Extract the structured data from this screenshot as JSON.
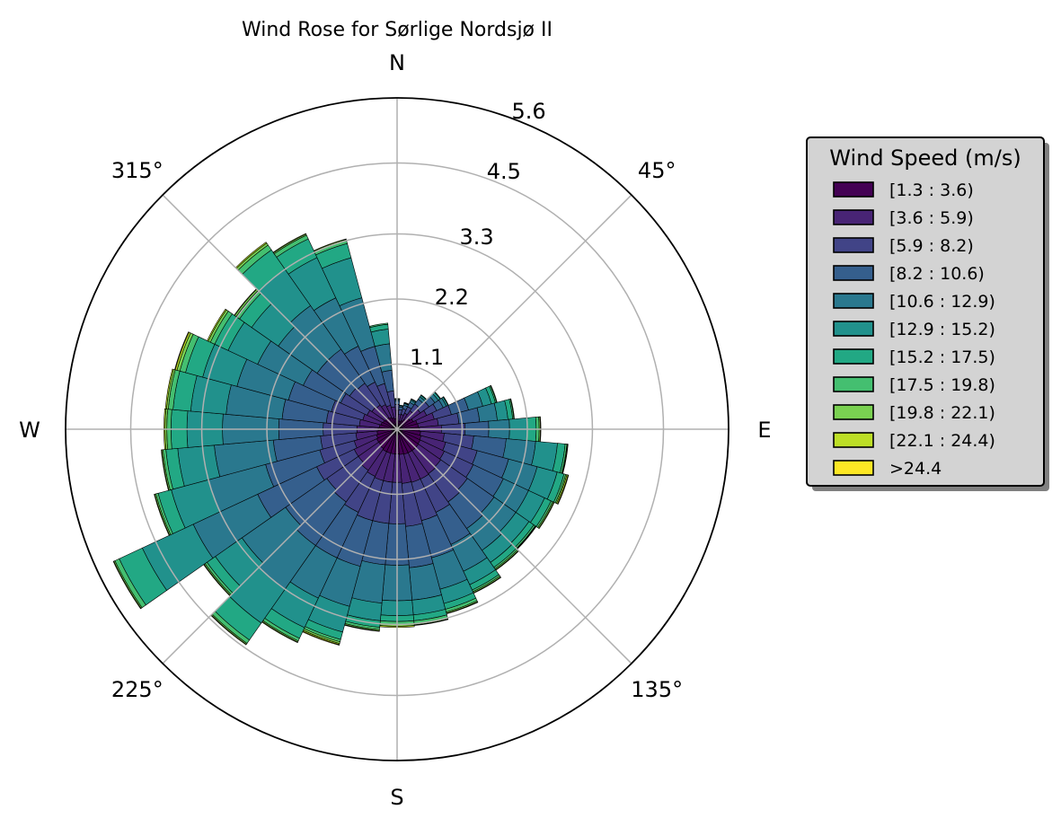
{
  "chart_data": {
    "type": "polar-stacked-bar",
    "title": "Wind Rose for Sørlige Nordsjø II",
    "direction_labels": [
      {
        "angle": 0,
        "text": "N"
      },
      {
        "angle": 45,
        "text": "45°"
      },
      {
        "angle": 90,
        "text": "E"
      },
      {
        "angle": 135,
        "text": "135°"
      },
      {
        "angle": 180,
        "text": "S"
      },
      {
        "angle": 225,
        "text": "225°"
      },
      {
        "angle": 270,
        "text": "W"
      },
      {
        "angle": 315,
        "text": "315°"
      }
    ],
    "radial_ticks": [
      {
        "value": 1.1,
        "label": "1.1"
      },
      {
        "value": 2.2,
        "label": "2.2"
      },
      {
        "value": 3.3,
        "label": "3.3"
      },
      {
        "value": 4.5,
        "label": "4.5"
      },
      {
        "value": 5.6,
        "label": "5.6"
      }
    ],
    "r_max": 5.6,
    "sector_count": 36,
    "sector_width_deg": 10,
    "legend": {
      "title": "Wind Speed (m/s)",
      "placement": "right",
      "bins": [
        {
          "label": "[1.3 : 3.6)",
          "color": "#440154"
        },
        {
          "label": "[3.6 : 5.9)",
          "color": "#482475"
        },
        {
          "label": "[5.9 : 8.2)",
          "color": "#414487"
        },
        {
          "label": "[8.2 : 10.6)",
          "color": "#355f8d"
        },
        {
          "label": "[10.6 : 12.9)",
          "color": "#2a788e"
        },
        {
          "label": "[12.9 : 15.2)",
          "color": "#21918c"
        },
        {
          "label": "[15.2 : 17.5)",
          "color": "#22a884"
        },
        {
          "label": "[17.5 : 19.8)",
          "color": "#44bf70"
        },
        {
          "label": "[19.8 : 22.1)",
          "color": "#7ad151"
        },
        {
          "label": "[22.1 : 24.4)",
          "color": "#bddf26"
        },
        {
          "label": ">24.4",
          "color": "#fde725"
        }
      ]
    },
    "sectors": [
      {
        "direction": 0,
        "cumulative": [
          0.18,
          0.32,
          0.42,
          0.48,
          0.5,
          0.51,
          0.52,
          0.52,
          0.52,
          0.52,
          0.52
        ]
      },
      {
        "direction": 10,
        "cumulative": [
          0.14,
          0.25,
          0.33,
          0.38,
          0.4,
          0.41,
          0.41,
          0.41,
          0.41,
          0.41,
          0.41
        ]
      },
      {
        "direction": 20,
        "cumulative": [
          0.14,
          0.26,
          0.36,
          0.42,
          0.45,
          0.46,
          0.47,
          0.47,
          0.47,
          0.47,
          0.47
        ]
      },
      {
        "direction": 30,
        "cumulative": [
          0.16,
          0.3,
          0.42,
          0.5,
          0.54,
          0.56,
          0.57,
          0.57,
          0.57,
          0.57,
          0.57
        ]
      },
      {
        "direction": 40,
        "cumulative": [
          0.2,
          0.38,
          0.52,
          0.62,
          0.67,
          0.7,
          0.71,
          0.71,
          0.71,
          0.71,
          0.71
        ]
      },
      {
        "direction": 50,
        "cumulative": [
          0.26,
          0.48,
          0.66,
          0.78,
          0.85,
          0.89,
          0.9,
          0.9,
          0.9,
          0.9,
          0.9
        ]
      },
      {
        "direction": 60,
        "cumulative": [
          0.3,
          0.55,
          0.74,
          0.86,
          0.92,
          0.95,
          0.96,
          0.96,
          0.96,
          0.96,
          0.96
        ]
      },
      {
        "direction": 70,
        "cumulative": [
          0.35,
          0.65,
          0.95,
          1.25,
          1.5,
          1.65,
          1.72,
          1.74,
          1.75,
          1.75,
          1.75
        ]
      },
      {
        "direction": 80,
        "cumulative": [
          0.36,
          0.7,
          1.05,
          1.4,
          1.7,
          1.88,
          1.96,
          1.98,
          1.99,
          1.99,
          1.99
        ]
      },
      {
        "direction": 90,
        "cumulative": [
          0.38,
          0.75,
          1.15,
          1.55,
          1.9,
          2.2,
          2.35,
          2.4,
          2.42,
          2.43,
          2.43
        ]
      },
      {
        "direction": 100,
        "cumulative": [
          0.4,
          0.8,
          1.3,
          1.85,
          2.35,
          2.72,
          2.85,
          2.88,
          2.89,
          2.9,
          2.9
        ]
      },
      {
        "direction": 110,
        "cumulative": [
          0.42,
          0.85,
          1.4,
          1.95,
          2.45,
          2.8,
          2.92,
          2.95,
          2.97,
          2.99,
          3.0
        ]
      },
      {
        "direction": 120,
        "cumulative": [
          0.43,
          0.88,
          1.42,
          1.98,
          2.45,
          2.75,
          2.87,
          2.9,
          2.92,
          2.93,
          2.93
        ]
      },
      {
        "direction": 130,
        "cumulative": [
          0.44,
          0.9,
          1.45,
          2.0,
          2.45,
          2.72,
          2.82,
          2.85,
          2.86,
          2.87,
          2.87
        ]
      },
      {
        "direction": 140,
        "cumulative": [
          0.44,
          0.92,
          1.5,
          2.05,
          2.5,
          2.75,
          2.85,
          2.88,
          2.9,
          2.91,
          2.91
        ]
      },
      {
        "direction": 150,
        "cumulative": [
          0.44,
          0.93,
          1.55,
          2.15,
          2.65,
          2.9,
          3.0,
          3.03,
          3.05,
          3.06,
          3.06
        ]
      },
      {
        "direction": 160,
        "cumulative": [
          0.44,
          0.93,
          1.6,
          2.25,
          2.8,
          3.05,
          3.15,
          3.2,
          3.22,
          3.23,
          3.23
        ]
      },
      {
        "direction": 170,
        "cumulative": [
          0.43,
          0.92,
          1.65,
          2.35,
          2.9,
          3.15,
          3.25,
          3.3,
          3.32,
          3.33,
          3.33
        ]
      },
      {
        "direction": 180,
        "cumulative": [
          0.42,
          0.9,
          1.6,
          2.3,
          2.9,
          3.15,
          3.25,
          3.3,
          3.33,
          3.35,
          3.35
        ]
      },
      {
        "direction": 190,
        "cumulative": [
          0.42,
          0.9,
          1.6,
          2.3,
          2.95,
          3.25,
          3.36,
          3.4,
          3.42,
          3.43,
          3.43
        ]
      },
      {
        "direction": 200,
        "cumulative": [
          0.42,
          0.9,
          1.6,
          2.4,
          3.1,
          3.55,
          3.68,
          3.72,
          3.75,
          3.77,
          3.78
        ]
      },
      {
        "direction": 210,
        "cumulative": [
          0.42,
          0.88,
          1.55,
          2.4,
          3.15,
          3.7,
          3.9,
          3.95,
          3.97,
          3.98,
          3.98
        ]
      },
      {
        "direction": 220,
        "cumulative": [
          0.4,
          0.85,
          1.5,
          2.4,
          3.3,
          4.0,
          4.35,
          4.42,
          4.44,
          4.45,
          4.45
        ]
      },
      {
        "direction": 230,
        "cumulative": [
          0.38,
          0.8,
          1.45,
          2.3,
          3.2,
          3.75,
          3.92,
          3.96,
          3.98,
          3.99,
          3.99
        ]
      },
      {
        "direction": 240,
        "cumulative": [
          0.38,
          0.8,
          1.5,
          2.6,
          3.8,
          4.75,
          5.18,
          5.26,
          5.28,
          5.29,
          5.29
        ]
      },
      {
        "direction": 250,
        "cumulative": [
          0.36,
          0.75,
          1.35,
          2.3,
          3.3,
          3.95,
          4.18,
          4.22,
          4.24,
          4.25,
          4.25
        ]
      },
      {
        "direction": 260,
        "cumulative": [
          0.34,
          0.7,
          1.3,
          2.1,
          3.1,
          3.72,
          3.92,
          3.97,
          3.99,
          4.0,
          4.0
        ]
      },
      {
        "direction": 270,
        "cumulative": [
          0.32,
          0.68,
          1.25,
          2.0,
          2.95,
          3.55,
          3.82,
          3.89,
          3.92,
          3.94,
          3.94
        ]
      },
      {
        "direction": 280,
        "cumulative": [
          0.3,
          0.64,
          1.2,
          1.95,
          2.9,
          3.5,
          3.8,
          3.88,
          3.91,
          3.93,
          3.93
        ]
      },
      {
        "direction": 290,
        "cumulative": [
          0.28,
          0.6,
          1.15,
          1.9,
          2.8,
          3.4,
          3.7,
          3.8,
          3.85,
          3.88,
          3.89
        ]
      },
      {
        "direction": 300,
        "cumulative": [
          0.26,
          0.56,
          1.05,
          1.75,
          2.6,
          3.15,
          3.4,
          3.48,
          3.52,
          3.54,
          3.54
        ]
      },
      {
        "direction": 310,
        "cumulative": [
          0.24,
          0.52,
          0.98,
          1.65,
          2.45,
          3.0,
          3.25,
          3.32,
          3.35,
          3.36,
          3.36
        ]
      },
      {
        "direction": 320,
        "cumulative": [
          0.24,
          0.5,
          0.95,
          1.65,
          2.55,
          3.3,
          3.7,
          3.8,
          3.84,
          3.86,
          3.86
        ]
      },
      {
        "direction": 330,
        "cumulative": [
          0.22,
          0.46,
          0.88,
          1.55,
          2.45,
          3.2,
          3.55,
          3.62,
          3.64,
          3.65,
          3.65
        ]
      },
      {
        "direction": 340,
        "cumulative": [
          0.2,
          0.42,
          0.8,
          1.45,
          2.3,
          3.0,
          3.25,
          3.3,
          3.32,
          3.33,
          3.33
        ]
      },
      {
        "direction": 350,
        "cumulative": [
          0.18,
          0.38,
          0.65,
          1.0,
          1.45,
          1.7,
          1.78,
          1.8,
          1.8,
          1.8,
          1.8
        ]
      }
    ]
  }
}
